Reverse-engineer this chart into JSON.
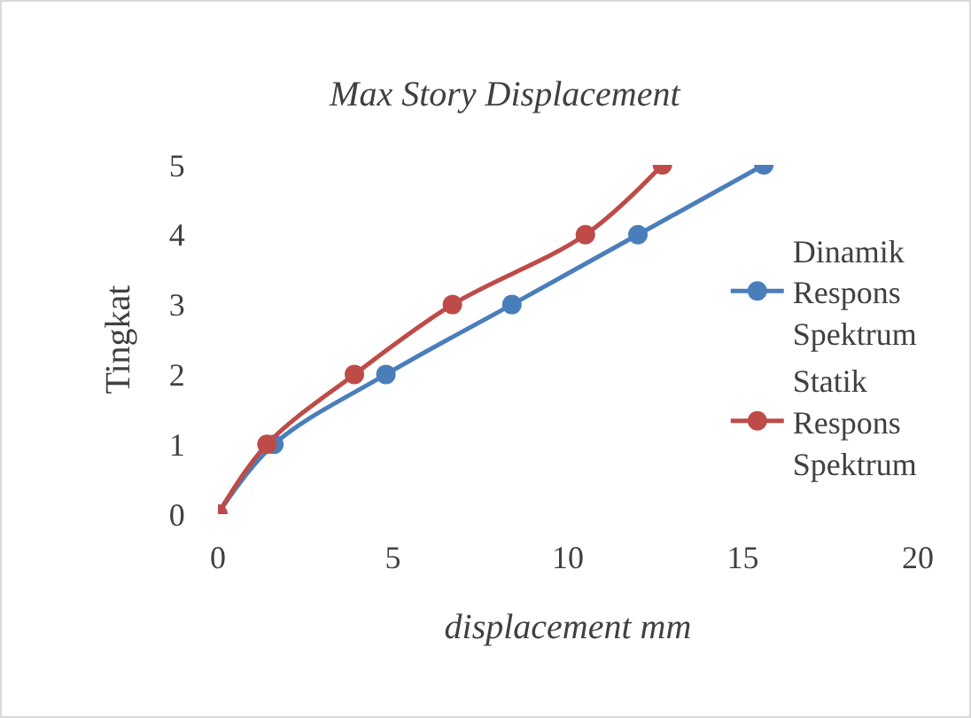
{
  "chart_data": {
    "type": "line",
    "title": "Max Story Displacement",
    "xlabel": "displacement mm",
    "ylabel": "Tingkat",
    "xlim": [
      0,
      20
    ],
    "xticks": [
      0,
      5,
      10,
      15,
      20
    ],
    "ylim": [
      0,
      5
    ],
    "yticks": [
      0,
      1,
      2,
      3,
      4,
      5
    ],
    "grid": false,
    "legend": "right",
    "marker": "circle",
    "line_style": "solid",
    "series": [
      {
        "name": "Dinamik Respons Spektrum",
        "color": "#4a7ebb",
        "x": [
          0,
          1.6,
          4.8,
          8.4,
          12.0,
          15.6
        ],
        "values": [
          0,
          1,
          2,
          3,
          4,
          5
        ]
      },
      {
        "name": "Statik Respons Spektrum",
        "color": "#be4b48",
        "x": [
          0,
          1.4,
          3.9,
          6.7,
          10.5,
          12.7
        ],
        "values": [
          0,
          1,
          2,
          3,
          4,
          5
        ]
      }
    ]
  }
}
